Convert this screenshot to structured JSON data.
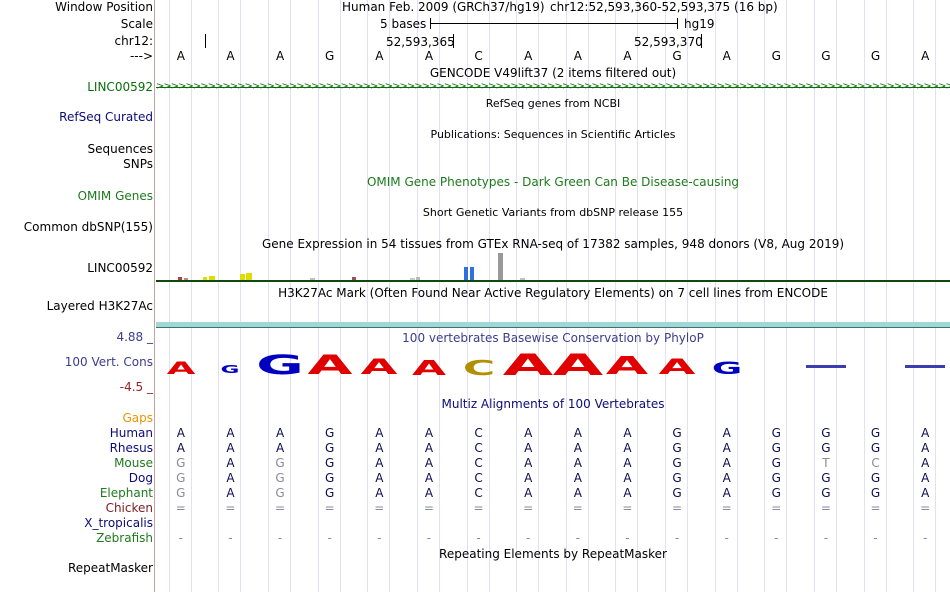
{
  "labels": {
    "window_position": "Window Position",
    "scale": "Scale",
    "chrom": "chr12:",
    "strand": "--->",
    "gencode": "LINC00592",
    "refseq": "RefSeq Curated",
    "sequences": "Sequences",
    "snps": "SNPs",
    "omim": "OMIM Genes",
    "dbsnp": "Common dbSNP(155)",
    "gtex": "LINC00592",
    "h3k27": "Layered H3K27Ac",
    "cons_max": "4.88 _",
    "cons": "100 Vert. Cons",
    "cons_min": "-4.5 _",
    "gaps": "Gaps"
  },
  "header": {
    "assembly": "Human Feb. 2009 (GRCh37/hg19)",
    "position": "chr12:52,593,360-52,593,375 (16 bp)",
    "scale_text": "5 bases",
    "scale_db": "hg19",
    "tick1": "52,593,365",
    "tick2": "52,593,370"
  },
  "sequence": [
    "A",
    "A",
    "A",
    "G",
    "A",
    "A",
    "C",
    "A",
    "A",
    "A",
    "G",
    "A",
    "G",
    "G",
    "G",
    "A"
  ],
  "tracks": {
    "gencode": "GENCODE V49lift37 (2 items filtered out)",
    "refseq": "RefSeq genes from NCBI",
    "pubs": "Publications: Sequences in Scientific Articles",
    "omim": "OMIM Gene Phenotypes - Dark Green Can Be Disease-causing",
    "dbsnp": "Short Genetic Variants from dbSNP release 155",
    "gtex": "Gene Expression in 54 tissues from GTEx RNA-seq of 17382 samples, 948 donors (V8, Aug 2019)",
    "h3k27": "H3K27Ac Mark (Often Found Near Active Regulatory Elements) on 7 cell lines from ENCODE",
    "phylop": "100 vertebrates Basewise Conservation by PhyloP",
    "multiz": "Multiz Alignments of 100 Vertebrates",
    "rmsk": "Repeating Elements by RepeatMasker",
    "rmsk_label": "RepeatMasker"
  },
  "species": [
    {
      "name": "Human",
      "bases": [
        "A",
        "A",
        "A",
        "G",
        "A",
        "A",
        "C",
        "A",
        "A",
        "A",
        "G",
        "A",
        "G",
        "G",
        "G",
        "A"
      ]
    },
    {
      "name": "Rhesus",
      "bases": [
        "A",
        "A",
        "A",
        "G",
        "A",
        "A",
        "C",
        "A",
        "A",
        "A",
        "G",
        "A",
        "G",
        "G",
        "G",
        "A"
      ]
    },
    {
      "name": "Mouse",
      "bases": [
        "G",
        "A",
        "G",
        "G",
        "A",
        "A",
        "C",
        "A",
        "A",
        "A",
        "G",
        "A",
        "G",
        "T",
        "C",
        "A"
      ]
    },
    {
      "name": "Dog",
      "bases": [
        "G",
        "A",
        "G",
        "G",
        "A",
        "A",
        "C",
        "A",
        "A",
        "A",
        "G",
        "A",
        "G",
        "G",
        "G",
        "A"
      ]
    },
    {
      "name": "Elephant",
      "bases": [
        "G",
        "A",
        "G",
        "G",
        "A",
        "A",
        "C",
        "A",
        "A",
        "A",
        "G",
        "A",
        "G",
        "G",
        "G",
        "A"
      ]
    },
    {
      "name": "Chicken",
      "bases": [
        "=",
        "=",
        "=",
        "=",
        "=",
        "=",
        "=",
        "=",
        "=",
        "=",
        "=",
        "=",
        "=",
        "=",
        "=",
        "="
      ]
    },
    {
      "name": "X_tropicalis",
      "bases": [
        "",
        "",
        "",
        "",
        "",
        "",
        "",
        "",
        "",
        "",
        "",
        "",
        "",
        "",
        "",
        ""
      ]
    },
    {
      "name": "Zebrafish",
      "bases": [
        "-",
        "-",
        "-",
        "-",
        "-",
        "-",
        "-",
        "-",
        "-",
        "-",
        "-",
        "-",
        "-",
        "-",
        "-",
        "-"
      ]
    }
  ],
  "phylop_logo": [
    "A",
    "G",
    "G",
    "A",
    "A",
    "A",
    "C",
    "A",
    "A",
    "A",
    "A",
    "G",
    "",
    "-",
    "",
    "-"
  ],
  "colors": {
    "gencode": "#0a6e0a",
    "refseq": "#0c0c78",
    "omim": "#1e7a1e",
    "cons_max": "#3c3c8c",
    "cons_min": "#9a2020",
    "gaps": "#e69600",
    "h3k27_bar": "#a0d8d8",
    "gtex_line": "#0d4a0d"
  }
}
